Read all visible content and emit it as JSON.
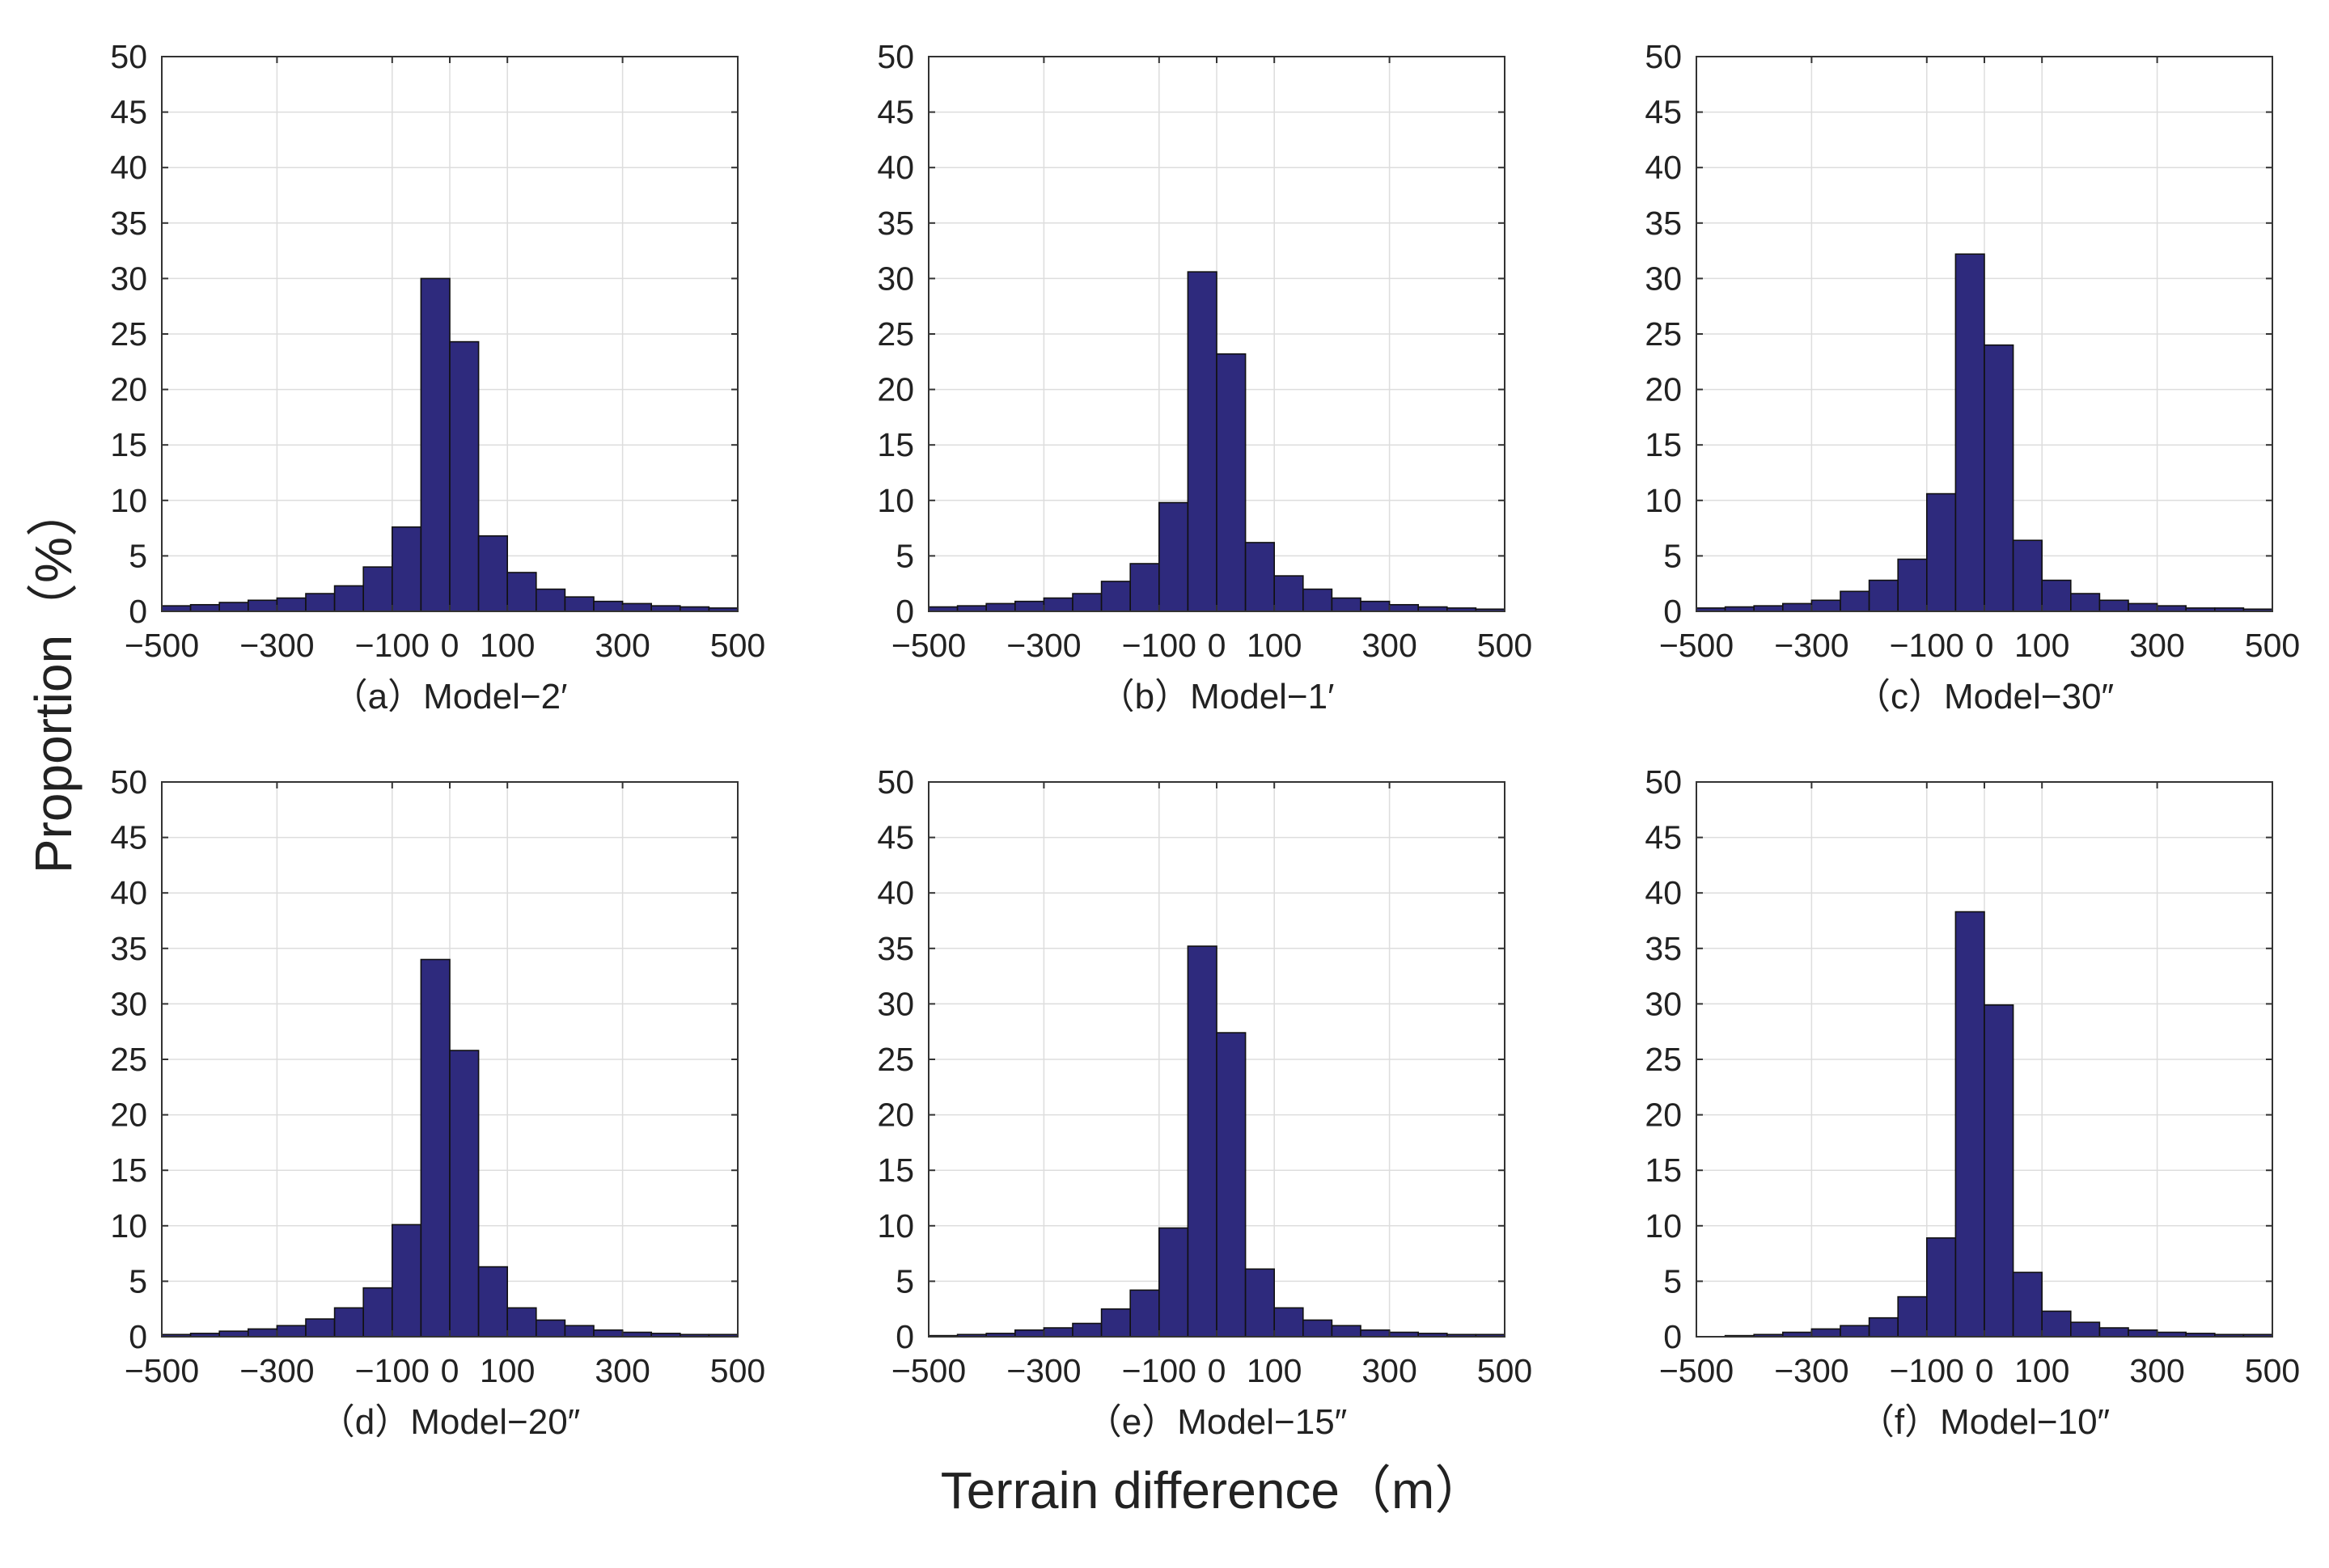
{
  "figure": {
    "ylabel": "Proportion（%）",
    "xlabel": "Terrain difference（m）",
    "bar_color": "#2e2a7d",
    "bar_edge_color": "#111111",
    "grid_color": "#dddddd"
  },
  "chart_data": [
    {
      "type": "bar",
      "caption": "（a）Model−2′",
      "xlim": [
        -500,
        500
      ],
      "ylim": [
        0,
        50
      ],
      "grid": true,
      "xticks": [
        -500,
        -300,
        -100,
        0,
        100,
        300,
        500
      ],
      "xtick_labels": [
        "−500",
        "−300",
        "−100",
        "0",
        "100",
        "300",
        "500"
      ],
      "yticks": [
        0,
        5,
        10,
        15,
        20,
        25,
        30,
        35,
        40,
        45,
        50
      ],
      "bin_edges": [
        -500,
        -450,
        -400,
        -350,
        -300,
        -250,
        -200,
        -150,
        -100,
        -50,
        0,
        50,
        100,
        150,
        200,
        250,
        300,
        350,
        400,
        450,
        500
      ],
      "values": [
        0.5,
        0.6,
        0.8,
        1.0,
        1.2,
        1.6,
        2.3,
        4.0,
        7.6,
        30.0,
        24.3,
        6.8,
        3.5,
        2.0,
        1.3,
        0.9,
        0.7,
        0.5,
        0.4,
        0.3
      ]
    },
    {
      "type": "bar",
      "caption": "（b）Model−1′",
      "xlim": [
        -500,
        500
      ],
      "ylim": [
        0,
        50
      ],
      "grid": true,
      "xticks": [
        -500,
        -300,
        -100,
        0,
        100,
        300,
        500
      ],
      "xtick_labels": [
        "−500",
        "−300",
        "−100",
        "0",
        "100",
        "300",
        "500"
      ],
      "yticks": [
        0,
        5,
        10,
        15,
        20,
        25,
        30,
        35,
        40,
        45,
        50
      ],
      "bin_edges": [
        -500,
        -450,
        -400,
        -350,
        -300,
        -250,
        -200,
        -150,
        -100,
        -50,
        0,
        50,
        100,
        150,
        200,
        250,
        300,
        350,
        400,
        450,
        500
      ],
      "values": [
        0.4,
        0.5,
        0.7,
        0.9,
        1.2,
        1.6,
        2.7,
        4.3,
        9.8,
        30.6,
        23.2,
        6.2,
        3.2,
        2.0,
        1.2,
        0.9,
        0.6,
        0.4,
        0.3,
        0.2
      ]
    },
    {
      "type": "bar",
      "caption": "（c）Model−30″",
      "xlim": [
        -500,
        500
      ],
      "ylim": [
        0,
        50
      ],
      "grid": true,
      "xticks": [
        -500,
        -300,
        -100,
        0,
        100,
        300,
        500
      ],
      "xtick_labels": [
        "−500",
        "−300",
        "−100",
        "0",
        "100",
        "300",
        "500"
      ],
      "yticks": [
        0,
        5,
        10,
        15,
        20,
        25,
        30,
        35,
        40,
        45,
        50
      ],
      "bin_edges": [
        -500,
        -450,
        -400,
        -350,
        -300,
        -250,
        -200,
        -150,
        -100,
        -50,
        0,
        50,
        100,
        150,
        200,
        250,
        300,
        350,
        400,
        450,
        500
      ],
      "values": [
        0.3,
        0.4,
        0.5,
        0.7,
        1.0,
        1.8,
        2.8,
        4.7,
        10.6,
        32.2,
        24.0,
        6.4,
        2.8,
        1.6,
        1.0,
        0.7,
        0.5,
        0.3,
        0.3,
        0.2
      ]
    },
    {
      "type": "bar",
      "caption": "（d）Model−20″",
      "xlim": [
        -500,
        500
      ],
      "ylim": [
        0,
        50
      ],
      "grid": true,
      "xticks": [
        -500,
        -300,
        -100,
        0,
        100,
        300,
        500
      ],
      "xtick_labels": [
        "−500",
        "−300",
        "−100",
        "0",
        "100",
        "300",
        "500"
      ],
      "yticks": [
        0,
        5,
        10,
        15,
        20,
        25,
        30,
        35,
        40,
        45,
        50
      ],
      "bin_edges": [
        -500,
        -450,
        -400,
        -350,
        -300,
        -250,
        -200,
        -150,
        -100,
        -50,
        0,
        50,
        100,
        150,
        200,
        250,
        300,
        350,
        400,
        450,
        500
      ],
      "values": [
        0.2,
        0.3,
        0.5,
        0.7,
        1.0,
        1.6,
        2.6,
        4.4,
        10.1,
        34.0,
        25.8,
        6.3,
        2.6,
        1.5,
        1.0,
        0.6,
        0.4,
        0.3,
        0.2,
        0.2
      ]
    },
    {
      "type": "bar",
      "caption": "（e）Model−15″",
      "xlim": [
        -500,
        500
      ],
      "ylim": [
        0,
        50
      ],
      "grid": true,
      "xticks": [
        -500,
        -300,
        -100,
        0,
        100,
        300,
        500
      ],
      "xtick_labels": [
        "−500",
        "−300",
        "−100",
        "0",
        "100",
        "300",
        "500"
      ],
      "yticks": [
        0,
        5,
        10,
        15,
        20,
        25,
        30,
        35,
        40,
        45,
        50
      ],
      "bin_edges": [
        -500,
        -450,
        -400,
        -350,
        -300,
        -250,
        -200,
        -150,
        -100,
        -50,
        0,
        50,
        100,
        150,
        200,
        250,
        300,
        350,
        400,
        450,
        500
      ],
      "values": [
        0.1,
        0.2,
        0.3,
        0.6,
        0.8,
        1.2,
        2.5,
        4.2,
        9.8,
        35.2,
        27.4,
        6.1,
        2.6,
        1.5,
        1.0,
        0.6,
        0.4,
        0.3,
        0.2,
        0.2
      ]
    },
    {
      "type": "bar",
      "caption": "（f）Model−10″",
      "xlim": [
        -500,
        500
      ],
      "ylim": [
        0,
        50
      ],
      "grid": true,
      "xticks": [
        -500,
        -300,
        -100,
        0,
        100,
        300,
        500
      ],
      "xtick_labels": [
        "−500",
        "−300",
        "−100",
        "0",
        "100",
        "300",
        "500"
      ],
      "yticks": [
        0,
        5,
        10,
        15,
        20,
        25,
        30,
        35,
        40,
        45,
        50
      ],
      "bin_edges": [
        -500,
        -450,
        -400,
        -350,
        -300,
        -250,
        -200,
        -150,
        -100,
        -50,
        0,
        50,
        100,
        150,
        200,
        250,
        300,
        350,
        400,
        450,
        500
      ],
      "values": [
        0.0,
        0.1,
        0.2,
        0.4,
        0.7,
        1.0,
        1.7,
        3.6,
        8.9,
        38.3,
        29.9,
        5.8,
        2.3,
        1.3,
        0.8,
        0.6,
        0.4,
        0.3,
        0.2,
        0.2
      ]
    }
  ]
}
